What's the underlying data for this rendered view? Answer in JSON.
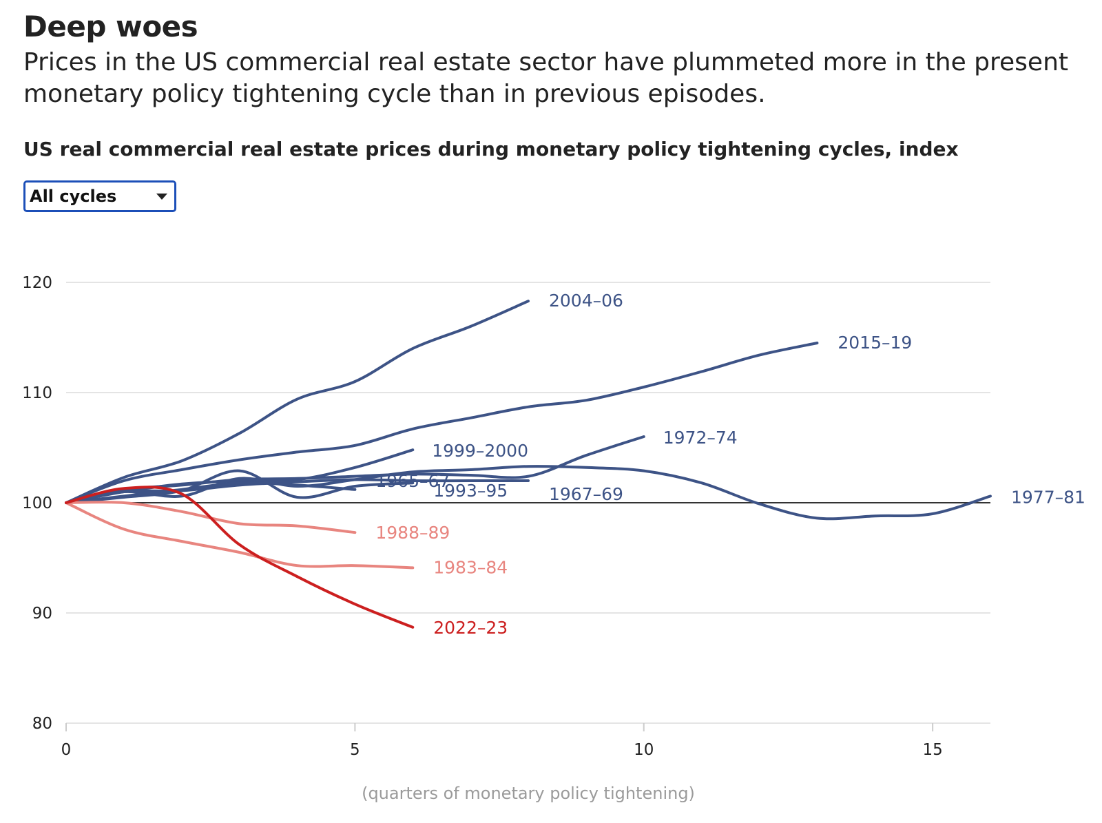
{
  "header": {
    "title": "Deep woes",
    "subtitle": "Prices in the US commercial real estate sector have plummeted more in the present monetary policy tightening cycle than in previous episodes."
  },
  "chart_header": {
    "title": "US real commercial real estate prices during monetary policy tightening cycles, index"
  },
  "filter": {
    "selected": "All cycles",
    "icon": "chevron-down-icon"
  },
  "colors": {
    "past_cycle": "#3d5386",
    "past_cycle_falling": "#e8857f",
    "current_cycle": "#cc1f1f",
    "baseline": "#333333",
    "grid": "#e4e4e4"
  },
  "chart_data": {
    "type": "line",
    "title": "US real commercial real estate prices during monetary policy tightening cycles, index",
    "xlabel": "(quarters of monetary policy tightening)",
    "ylabel": "",
    "xlim": [
      0,
      16
    ],
    "ylim": [
      80,
      120
    ],
    "xticks": [
      0,
      5,
      10,
      15
    ],
    "yticks": [
      80,
      90,
      100,
      110,
      120
    ],
    "grid": true,
    "baseline": 100,
    "series": [
      {
        "name": "2004–06",
        "color": "#3d5386",
        "x": [
          0,
          1,
          2,
          3,
          4,
          5,
          6,
          7,
          8
        ],
        "values": [
          100,
          102.3,
          103.8,
          106.3,
          109.4,
          111,
          114,
          116,
          118.3
        ]
      },
      {
        "name": "2015–19",
        "color": "#3d5386",
        "x": [
          0,
          1,
          2,
          3,
          4,
          5,
          6,
          7,
          8,
          9,
          10,
          11,
          12,
          13
        ],
        "values": [
          100,
          102,
          103,
          103.9,
          104.6,
          105.2,
          106.7,
          107.7,
          108.7,
          109.3,
          110.5,
          111.9,
          113.4,
          114.5
        ]
      },
      {
        "name": "1999–2000",
        "color": "#3d5386",
        "x": [
          0,
          1,
          2,
          3,
          4,
          5,
          6
        ],
        "values": [
          100,
          101,
          101.7,
          102,
          102.1,
          103.2,
          104.8
        ]
      },
      {
        "name": "1972–74",
        "color": "#3d5386",
        "x": [
          0,
          1,
          2,
          3,
          4,
          5,
          6,
          7,
          8,
          9,
          10
        ],
        "values": [
          100,
          101.2,
          101.6,
          102.1,
          102.2,
          102.4,
          102.6,
          102.5,
          102.4,
          104.3,
          106
        ]
      },
      {
        "name": "1967–69",
        "color": "#3d5386",
        "x": [
          0,
          1,
          2,
          3,
          4,
          5,
          6,
          7,
          8
        ],
        "values": [
          100,
          101,
          101.1,
          101.6,
          101.9,
          102.1,
          102,
          102,
          102
        ]
      },
      {
        "name": "1977–81",
        "color": "#3d5386",
        "x": [
          0,
          1,
          2,
          3,
          4,
          5,
          6,
          7,
          8,
          9,
          10,
          11,
          12,
          13,
          14,
          15,
          16
        ],
        "values": [
          100,
          101,
          100.6,
          102.2,
          101.5,
          102.1,
          102.8,
          103,
          103.3,
          103.2,
          102.9,
          101.8,
          99.9,
          98.6,
          98.8,
          99,
          100.6
        ]
      },
      {
        "name": "1965–67",
        "color": "#3d5386",
        "x": [
          0,
          1,
          2,
          3,
          4,
          5
        ],
        "values": [
          100,
          100.6,
          101.2,
          101.8,
          101.6,
          101.2
        ]
      },
      {
        "name": "1993–95",
        "color": "#3d5386",
        "x": [
          0,
          1,
          2,
          3,
          4,
          5,
          6
        ],
        "values": [
          100,
          100.5,
          101.1,
          102.9,
          100.5,
          101.5,
          101.8
        ]
      },
      {
        "name": "1988–89",
        "color": "#e8857f",
        "x": [
          0,
          1,
          2,
          3,
          4,
          5
        ],
        "values": [
          100,
          100,
          99.2,
          98.1,
          97.9,
          97.3
        ]
      },
      {
        "name": "1983–84",
        "color": "#e8857f",
        "x": [
          0,
          1,
          2,
          3,
          4,
          5,
          6
        ],
        "values": [
          100,
          97.6,
          96.5,
          95.5,
          94.3,
          94.3,
          94.1
        ]
      },
      {
        "name": "2022–23",
        "color": "#cc1f1f",
        "x": [
          0,
          1,
          2,
          3,
          4,
          5,
          6
        ],
        "values": [
          100,
          101.3,
          100.8,
          96.2,
          93.3,
          90.8,
          88.7
        ]
      }
    ]
  },
  "labels": {
    "2004–06": "2004–06",
    "2015–19": "2015–19",
    "1999–2000": "1999–2000",
    "1972–74": "1972–74",
    "1967–69": "1967–69",
    "1977–81": "1977–81",
    "1965–67": "1965–67",
    "1993–95": "1993–95",
    "1988–89": "1988–89",
    "1983–84": "1983–84",
    "2022–23": "2022–23"
  }
}
